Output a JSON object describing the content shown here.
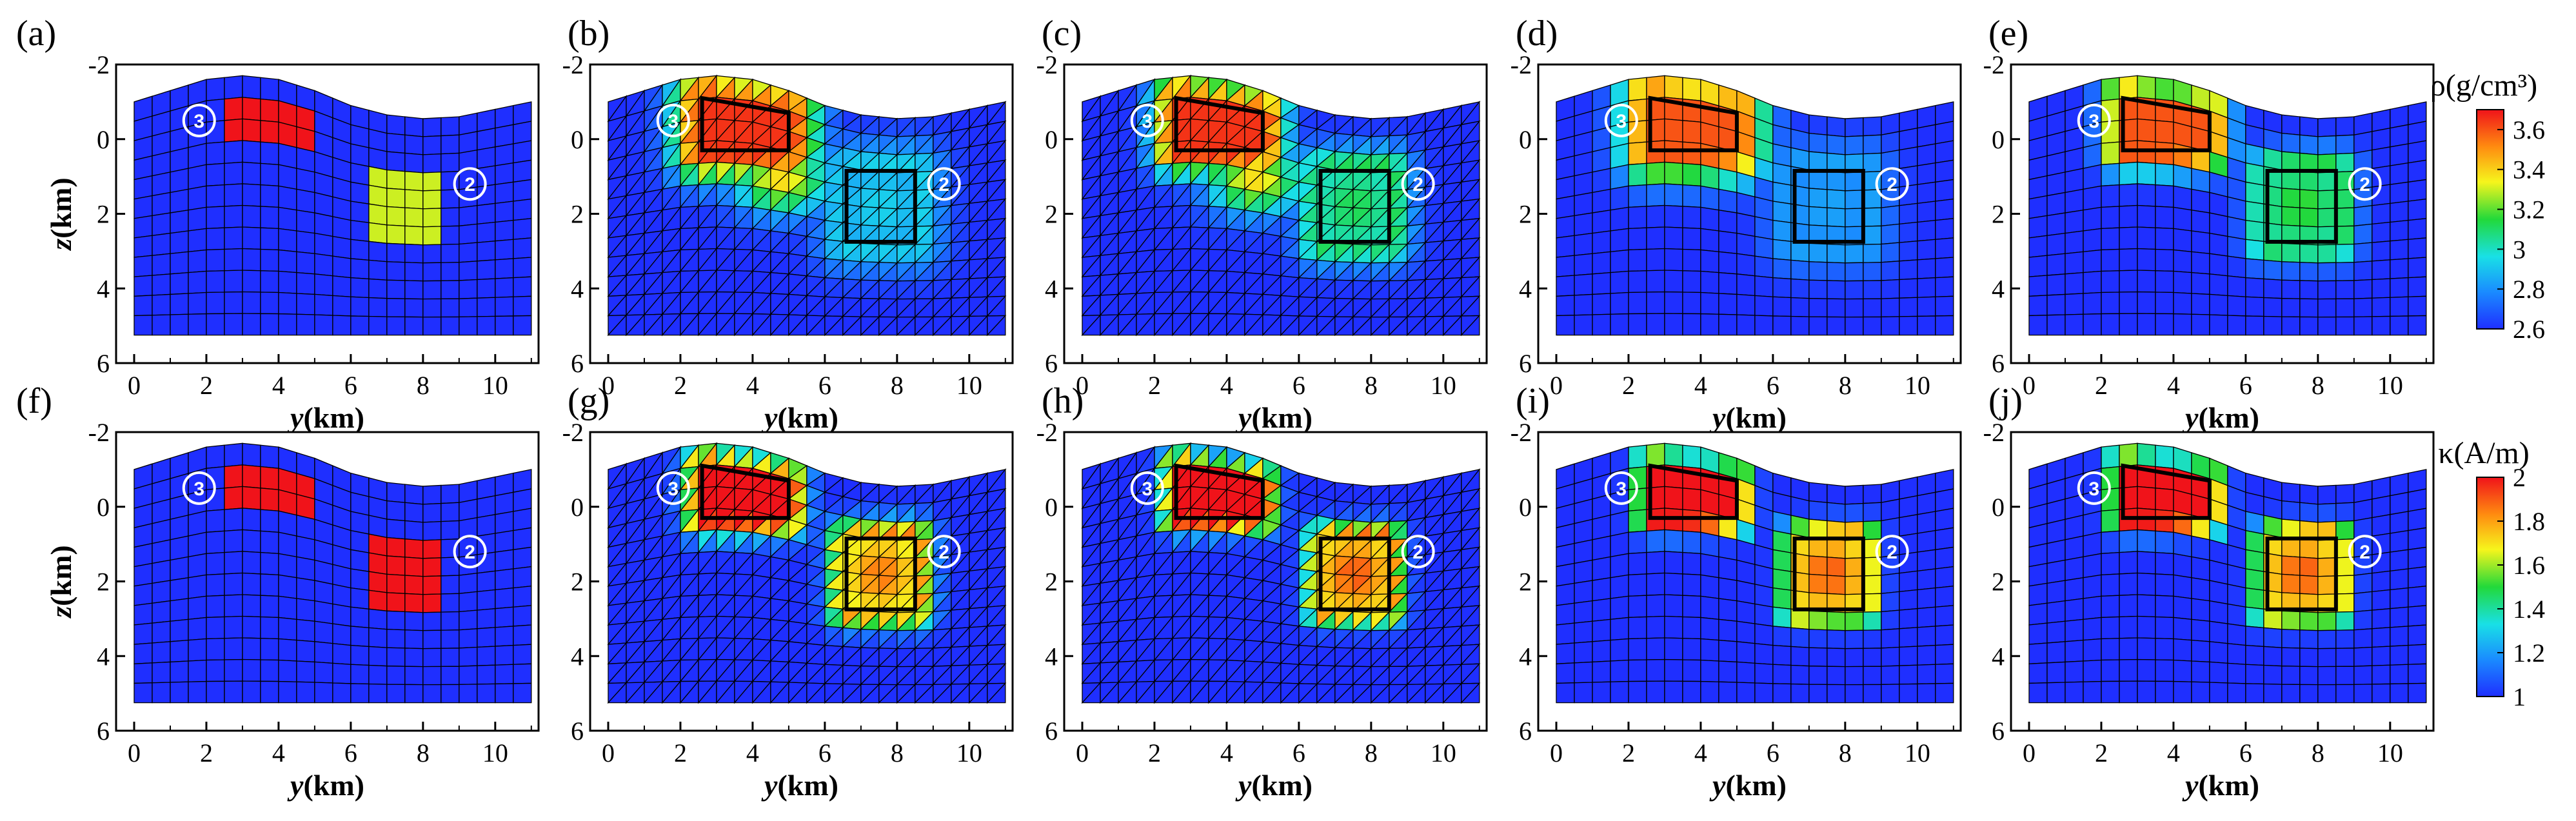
{
  "chart_data": {
    "type": "heatmap",
    "description_rows": [
      "density (rho)",
      "magnetization (kappa)"
    ],
    "x_axis": {
      "label": "y",
      "unit": "(km)",
      "range": [
        -0.5,
        11.2
      ],
      "ticks": [
        0,
        2,
        4,
        6,
        8,
        10
      ]
    },
    "y_axis": {
      "label": "z",
      "unit": "(km)",
      "range": [
        -2,
        6
      ],
      "ticks": [
        -2,
        0,
        2,
        4,
        6
      ],
      "inverted": true
    },
    "topography": {
      "y": [
        0,
        1,
        2,
        3,
        4,
        5,
        6,
        7,
        8,
        9,
        10,
        11
      ],
      "z": [
        -1.0,
        -1.3,
        -1.6,
        -1.7,
        -1.6,
        -1.3,
        -0.9,
        -0.65,
        -0.55,
        -0.6,
        -0.8,
        -1.0
      ]
    },
    "bottom_depth_km": 5.25,
    "anomalies": [
      {
        "id": "3",
        "marker": "③",
        "y_range": [
          2.6,
          5.0
        ],
        "z_top_y": [
          [
            2.6,
            -1.1
          ],
          [
            5.0,
            -0.7
          ]
        ],
        "z_bottom": 0.3,
        "marker_pos": [
          1.8,
          -0.5
        ]
      },
      {
        "id": "2",
        "marker": "②",
        "y_range": [
          6.6,
          8.5
        ],
        "z_range": [
          0.85,
          2.75
        ],
        "marker_pos": [
          9.3,
          1.2
        ]
      }
    ],
    "colorbars": [
      {
        "row": 0,
        "title": "ρ(g/cm³)",
        "min": 2.6,
        "max": 3.7,
        "ticks": [
          "3.6",
          "3.4",
          "3.2",
          "3",
          "2.8",
          "2.6"
        ],
        "tick_values": [
          3.6,
          3.4,
          3.2,
          3.0,
          2.8,
          2.6
        ]
      },
      {
        "row": 1,
        "title": "κ(A/m)",
        "min": 1.0,
        "max": 2.0,
        "ticks": [
          "2",
          "1.8",
          "1.6",
          "1.4",
          "1.2",
          "1"
        ],
        "tick_values": [
          2.0,
          1.8,
          1.6,
          1.4,
          1.2,
          1.0
        ]
      }
    ],
    "panels": [
      {
        "letter": "(a)",
        "row": 0,
        "mesh": "true",
        "show_z_axis": true,
        "anomaly3_value": 3.7,
        "anomaly2_value": 3.3,
        "boxes": false
      },
      {
        "letter": "(b)",
        "row": 0,
        "mesh": "tri",
        "show_z_axis": false,
        "anomaly3_value": 3.65,
        "anomaly2_value": 2.95,
        "spread": 1.0,
        "boxes": true
      },
      {
        "letter": "(c)",
        "row": 0,
        "mesh": "tri",
        "show_z_axis": false,
        "anomaly3_value": 3.65,
        "anomaly2_value": 3.15,
        "spread": 0.8,
        "boxes": true
      },
      {
        "letter": "(d)",
        "row": 0,
        "mesh": "quad",
        "show_z_axis": false,
        "anomaly3_value": 3.6,
        "anomaly2_value": 2.85,
        "spread": 1.0,
        "boxes": true
      },
      {
        "letter": "(e)",
        "row": 0,
        "mesh": "quad",
        "show_z_axis": false,
        "anomaly3_value": 3.6,
        "anomaly2_value": 3.2,
        "spread": 0.7,
        "boxes": true
      },
      {
        "letter": "(f)",
        "row": 1,
        "mesh": "true",
        "show_z_axis": true,
        "anomaly3_value": 2.0,
        "anomaly2_value": 2.0,
        "boxes": false
      },
      {
        "letter": "(g)",
        "row": 1,
        "mesh": "tri",
        "show_z_axis": false,
        "anomaly3_value": 2.0,
        "anomaly2_value": 1.9,
        "spread": 0.6,
        "boxes": true
      },
      {
        "letter": "(h)",
        "row": 1,
        "mesh": "tri",
        "show_z_axis": false,
        "anomaly3_value": 2.0,
        "anomaly2_value": 1.95,
        "spread": 0.5,
        "boxes": true
      },
      {
        "letter": "(i)",
        "row": 1,
        "mesh": "quad",
        "show_z_axis": false,
        "anomaly3_value": 2.0,
        "anomaly2_value": 1.95,
        "spread": 0.5,
        "boxes": true
      },
      {
        "letter": "(j)",
        "row": 1,
        "mesh": "quad",
        "show_z_axis": false,
        "anomaly3_value": 2.0,
        "anomaly2_value": 1.95,
        "spread": 0.5,
        "boxes": true
      }
    ]
  }
}
